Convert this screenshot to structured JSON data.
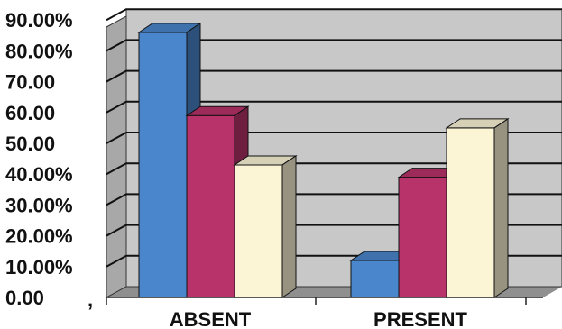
{
  "chart_data": {
    "type": "bar",
    "title": "",
    "xlabel": "",
    "ylabel": "",
    "ylim": [
      0,
      90
    ],
    "grid": true,
    "y_ticks": [
      {
        "value": 0,
        "label": "0.00"
      },
      {
        "value": 10,
        "label": "10.00%"
      },
      {
        "value": 20,
        "label": "20.00%"
      },
      {
        "value": 30,
        "label": "30.00%"
      },
      {
        "value": 40,
        "label": "40.00%"
      },
      {
        "value": 50,
        "label": "50.00"
      },
      {
        "value": 60,
        "label": "60.00"
      },
      {
        "value": 70,
        "label": "70.00"
      },
      {
        "value": 80,
        "label": "80.00%"
      },
      {
        "value": 90,
        "label": "90.00%"
      }
    ],
    "categories": [
      "ABSENT",
      "PRESENT"
    ],
    "series": [
      {
        "values": [
          86,
          12
        ],
        "color": "#4a86cc"
      },
      {
        "values": [
          59,
          39
        ],
        "color": "#b8336a"
      },
      {
        "values": [
          43,
          55
        ],
        "color": "#fbf5d6"
      }
    ],
    "stray_mark": ","
  }
}
